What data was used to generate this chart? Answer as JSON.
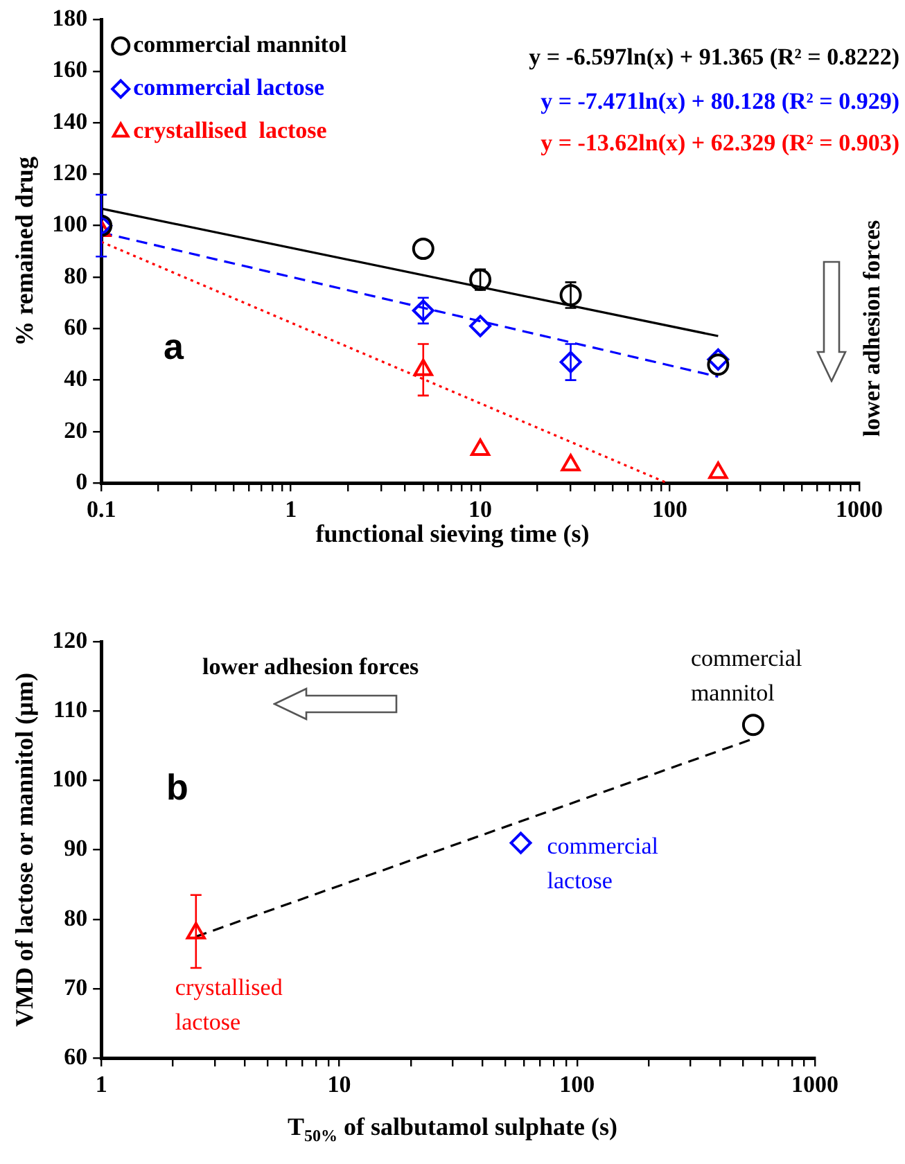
{
  "chart_data": [
    {
      "type": "scatter",
      "xlabel": "functional sieving time (s)",
      "ylabel": "% remained drug",
      "log": "x",
      "legend": "top left",
      "grid": false,
      "xlim": [
        0.1,
        1000
      ],
      "ylim": [
        0,
        180
      ],
      "xticks": [
        0.1,
        {
          "value": 0.2,
          "label": null
        },
        {
          "value": 0.3,
          "label": null
        },
        {
          "value": 0.4,
          "label": null
        },
        {
          "value": 0.5,
          "label": null
        },
        {
          "value": 0.6,
          "label": null
        },
        {
          "value": 0.7,
          "label": null
        },
        {
          "value": 0.8,
          "label": null
        },
        {
          "value": 0.9,
          "label": null
        },
        1,
        {
          "value": 2,
          "label": null
        },
        {
          "value": 3,
          "label": null
        },
        {
          "value": 4,
          "label": null
        },
        {
          "value": 5,
          "label": null
        },
        {
          "value": 6,
          "label": null
        },
        {
          "value": 7,
          "label": null
        },
        {
          "value": 8,
          "label": null
        },
        {
          "value": 9,
          "label": null
        },
        10,
        {
          "value": 20,
          "label": null
        },
        {
          "value": 30,
          "label": null
        },
        {
          "value": 40,
          "label": null
        },
        {
          "value": 50,
          "label": null
        },
        {
          "value": 60,
          "label": null
        },
        {
          "value": 70,
          "label": null
        },
        {
          "value": 80,
          "label": null
        },
        {
          "value": 90,
          "label": null
        },
        100,
        {
          "value": 200,
          "label": null
        },
        {
          "value": 300,
          "label": null
        },
        {
          "value": 400,
          "label": null
        },
        {
          "value": 500,
          "label": null
        },
        {
          "value": 600,
          "label": null
        },
        {
          "value": 700,
          "label": null
        },
        {
          "value": 800,
          "label": null
        },
        {
          "value": 900,
          "label": null
        },
        1000
      ],
      "yticks": [
        0,
        20,
        40,
        60,
        80,
        100,
        120,
        140,
        160,
        180
      ],
      "series": [
        {
          "name": "commercial mannitol",
          "color": "#000000",
          "marker": "circle",
          "x": [
            0.1,
            5,
            10,
            30,
            180
          ],
          "values": [
            100,
            91,
            79,
            73,
            46
          ],
          "errors": [
            null,
            null,
            4,
            5,
            null
          ]
        },
        {
          "name": "commercial lactose",
          "color": "#0000ff",
          "marker": "diamond",
          "x": [
            0.1,
            5,
            10,
            30,
            180
          ],
          "values": [
            100,
            67,
            61,
            47,
            48
          ],
          "errors": [
            12,
            5,
            null,
            7,
            null
          ]
        },
        {
          "name": "crystallised  lactose",
          "color": "#ff0000",
          "marker": "triangle",
          "x": [
            0.1,
            5,
            10,
            30,
            180
          ],
          "values": [
            98,
            44,
            13,
            7,
            4
          ],
          "errors": [
            null,
            10,
            null,
            null,
            null
          ]
        },
        {
          "type": "line",
          "color": "#000000",
          "line_style": "solid",
          "x": [
            0.1,
            180
          ],
          "values": [
            106.6,
            57.1
          ]
        },
        {
          "type": "line",
          "color": "#0000ff",
          "line_style": "dashed",
          "x": [
            0.1,
            180
          ],
          "values": [
            97.3,
            41.3
          ]
        },
        {
          "type": "line",
          "color": "#ff0000",
          "line_style": "dotted",
          "x": [
            0.1,
            97
          ],
          "values": [
            93.7,
            0
          ]
        }
      ],
      "annotations": [
        "y = -6.597ln(x) + 91.365 (R² = 0.8222)",
        "y = -7.471ln(x) + 80.128 (R² = 0.929)",
        "y = -13.62ln(x) + 62.329 (R² = 0.903)",
        "a",
        "lower adhesion forces"
      ]
    },
    {
      "type": "scatter",
      "xlabel": "T$_{50%}$ of salbutamol sulphate (s)",
      "ylabel": "VMD of lactose or mannitol (µm)",
      "log": "x",
      "grid": false,
      "xlim": [
        1,
        1000
      ],
      "ylim": [
        60,
        120
      ],
      "xticks": [
        1,
        {
          "value": 2,
          "label": null
        },
        {
          "value": 3,
          "label": null
        },
        {
          "value": 4,
          "label": null
        },
        {
          "value": 5,
          "label": null
        },
        {
          "value": 6,
          "label": null
        },
        {
          "value": 7,
          "label": null
        },
        {
          "value": 8,
          "label": null
        },
        {
          "value": 9,
          "label": null
        },
        10,
        {
          "value": 20,
          "label": null
        },
        {
          "value": 30,
          "label": null
        },
        {
          "value": 40,
          "label": null
        },
        {
          "value": 50,
          "label": null
        },
        {
          "value": 60,
          "label": null
        },
        {
          "value": 70,
          "label": null
        },
        {
          "value": 80,
          "label": null
        },
        {
          "value": 90,
          "label": null
        },
        100,
        {
          "value": 200,
          "label": null
        },
        {
          "value": 300,
          "label": null
        },
        {
          "value": 400,
          "label": null
        },
        {
          "value": 500,
          "label": null
        },
        {
          "value": 600,
          "label": null
        },
        {
          "value": 700,
          "label": null
        },
        {
          "value": 800,
          "label": null
        },
        {
          "value": 900,
          "label": null
        },
        1000
      ],
      "yticks": [
        60,
        70,
        80,
        90,
        100,
        110,
        120
      ],
      "series": [
        {
          "name": "crystallised lactose",
          "color": "#ff0000",
          "marker": "triangle",
          "x": [
            2.5
          ],
          "values": [
            78
          ],
          "errors": [
            [
              73,
              83.5
            ]
          ]
        },
        {
          "name": "commercial lactose",
          "color": "#0000ff",
          "marker": "diamond",
          "x": [
            58
          ],
          "values": [
            91
          ]
        },
        {
          "name": "commercial mannitol",
          "color": "#000000",
          "marker": "circle",
          "x": [
            550
          ],
          "values": [
            108
          ]
        },
        {
          "type": "line",
          "color": "#000000",
          "line_style": "dashed",
          "x": [
            2.5,
            550
          ],
          "values": [
            77.5,
            106
          ]
        }
      ],
      "annotations": [
        "lower adhesion forces",
        "b"
      ]
    }
  ]
}
